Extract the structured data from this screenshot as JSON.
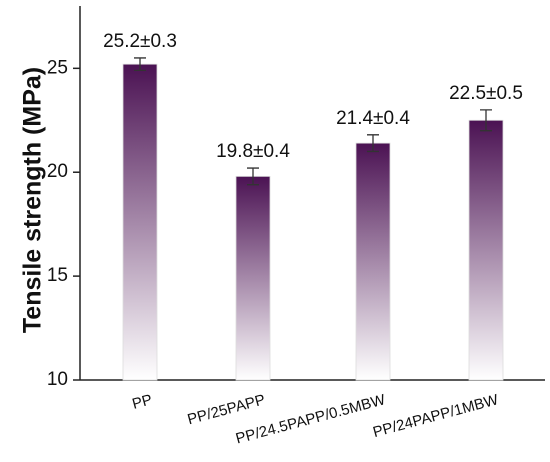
{
  "chart_data": {
    "type": "bar",
    "y_label": "Tensile strength (MPa)",
    "categories": [
      "PP",
      "PP/25PAPP",
      "PP/24.5PAPP/0.5MBW",
      "PP/24PAPP/1MBW"
    ],
    "values": [
      25.2,
      19.8,
      21.4,
      22.5
    ],
    "errors": [
      0.3,
      0.4,
      0.4,
      0.5
    ],
    "value_labels": [
      "25.2±0.3",
      "19.8±0.4",
      "21.4±0.4",
      "22.5±0.5"
    ],
    "color": "#4b1253",
    "ylim": [
      10,
      28
    ],
    "yticks": [
      10,
      15,
      20,
      25
    ]
  }
}
